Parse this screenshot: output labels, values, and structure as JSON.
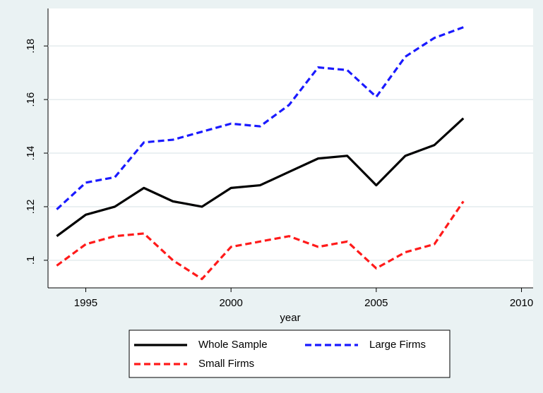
{
  "chart_data": {
    "type": "line",
    "x_label": "year",
    "x": [
      1994,
      1995,
      1996,
      1997,
      1998,
      1999,
      2000,
      2001,
      2002,
      2003,
      2004,
      2005,
      2006,
      2007,
      2008
    ],
    "series": [
      {
        "name": "Whole Sample",
        "color": "#000000",
        "dash": "solid",
        "values": [
          0.109,
          0.117,
          0.12,
          0.127,
          0.122,
          0.12,
          0.127,
          0.128,
          0.133,
          0.138,
          0.139,
          0.128,
          0.139,
          0.143,
          0.153
        ]
      },
      {
        "name": "Large Firms",
        "color": "#1a1aff",
        "dash": "dashed",
        "values": [
          0.119,
          0.129,
          0.131,
          0.144,
          0.145,
          0.148,
          0.151,
          0.15,
          0.158,
          0.172,
          0.171,
          0.161,
          0.176,
          0.183,
          0.187
        ]
      },
      {
        "name": "Small Firms",
        "color": "#ff1a1a",
        "dash": "dashed",
        "values": [
          0.098,
          0.106,
          0.109,
          0.11,
          0.1,
          0.093,
          0.105,
          0.107,
          0.109,
          0.105,
          0.107,
          0.097,
          0.103,
          0.106,
          0.122
        ]
      }
    ],
    "xlim": [
      1993.7,
      2010.4
    ],
    "xticks": [
      1995,
      2000,
      2005,
      2010
    ],
    "ylim": [
      0.0897,
      0.194
    ],
    "yticks": [
      {
        "value": 0.1,
        "label": ".1"
      },
      {
        "value": 0.12,
        "label": ".12"
      },
      {
        "value": 0.14,
        "label": ".14"
      },
      {
        "value": 0.16,
        "label": ".16"
      },
      {
        "value": 0.18,
        "label": ".18"
      }
    ],
    "grid": true,
    "legend": "bottom"
  }
}
